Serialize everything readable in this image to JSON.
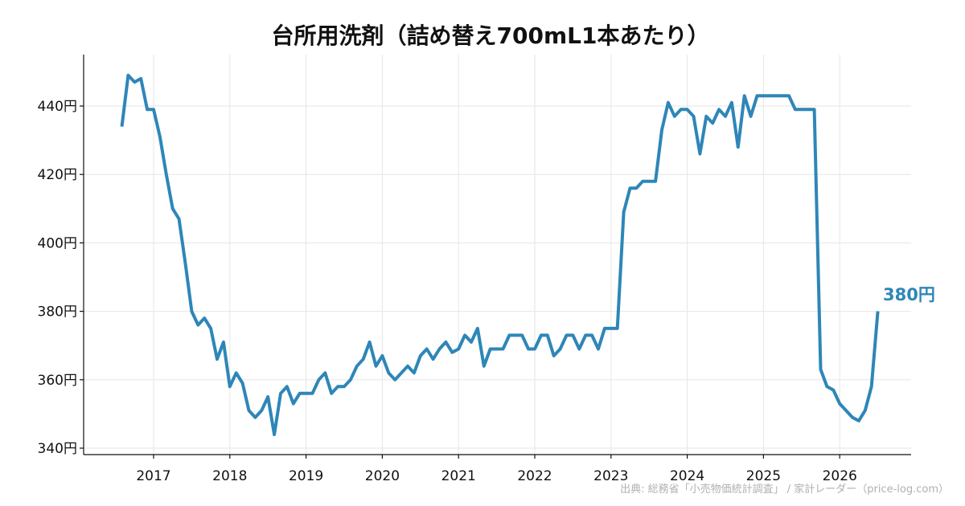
{
  "chart_data": {
    "type": "line",
    "title": "台所用洗剤（詰め替え700mL1本あたり）",
    "y_unit": "円",
    "ylim": [
      338,
      455
    ],
    "y_ticks": [
      340,
      360,
      380,
      400,
      420,
      440
    ],
    "y_tick_labels": [
      "340円",
      "360円",
      "380円",
      "400円",
      "420円",
      "440円"
    ],
    "x_ticks": [
      2017,
      2018,
      2019,
      2020,
      2021,
      2022,
      2023,
      2024,
      2025,
      2026
    ],
    "x_tick_labels": [
      "2017",
      "2018",
      "2019",
      "2020",
      "2021",
      "2022",
      "2023",
      "2024",
      "2025",
      "2026"
    ],
    "grid": true,
    "end_label": "380円",
    "source": "出典: 総務省「小売物価統計調査」 / 家計レーダー（price-log.com）",
    "colors": {
      "line": "#2e86b8",
      "end_label": "#2e86b8"
    },
    "series": [
      {
        "x": [
          "2016-08",
          "2016-09",
          "2016-10",
          "2016-11",
          "2016-12",
          "2017-01",
          "2017-02",
          "2017-03",
          "2017-04",
          "2017-05",
          "2017-06",
          "2017-07",
          "2017-08",
          "2017-09",
          "2017-10",
          "2017-11",
          "2017-12",
          "2018-01",
          "2018-02",
          "2018-03",
          "2018-04",
          "2018-05",
          "2018-06",
          "2018-07",
          "2018-08",
          "2018-09",
          "2018-10",
          "2018-11",
          "2018-12",
          "2019-01",
          "2019-02",
          "2019-03",
          "2019-04",
          "2019-05",
          "2019-06",
          "2019-07",
          "2019-08",
          "2019-09",
          "2019-10",
          "2019-11",
          "2019-12",
          "2020-01",
          "2020-02",
          "2020-03",
          "2020-04",
          "2020-05",
          "2020-06",
          "2020-07",
          "2020-08",
          "2020-09",
          "2020-10",
          "2020-11",
          "2020-12",
          "2021-01",
          "2021-02",
          "2021-03",
          "2021-04",
          "2021-05",
          "2021-06",
          "2021-07",
          "2021-08",
          "2021-09",
          "2021-10",
          "2021-11",
          "2021-12",
          "2022-01",
          "2022-02",
          "2022-03",
          "2022-04",
          "2022-05",
          "2022-06",
          "2022-07",
          "2022-08",
          "2022-09",
          "2022-10",
          "2022-11",
          "2022-12",
          "2023-01",
          "2023-02",
          "2023-03",
          "2023-04",
          "2023-05",
          "2023-06",
          "2023-07",
          "2023-08",
          "2023-09",
          "2023-10",
          "2023-11",
          "2023-12",
          "2024-01",
          "2024-02",
          "2024-03",
          "2024-04",
          "2024-05",
          "2024-06",
          "2024-07",
          "2024-08",
          "2024-09",
          "2024-10",
          "2024-11",
          "2024-12",
          "2025-01",
          "2025-02",
          "2025-03",
          "2025-04",
          "2025-05",
          "2025-06",
          "2025-07",
          "2025-08",
          "2025-09",
          "2025-10",
          "2025-11",
          "2025-12",
          "2026-01",
          "2026-02",
          "2026-03",
          "2026-04",
          "2026-05",
          "2026-06",
          "2026-07"
        ],
        "values": [
          434,
          449,
          447,
          448,
          439,
          439,
          431,
          420,
          410,
          407,
          394,
          380,
          376,
          378,
          375,
          366,
          371,
          358,
          362,
          359,
          351,
          349,
          351,
          355,
          344,
          356,
          358,
          353,
          356,
          356,
          356,
          360,
          362,
          356,
          358,
          358,
          360,
          364,
          366,
          371,
          364,
          367,
          362,
          360,
          362,
          364,
          362,
          367,
          369,
          366,
          369,
          371,
          368,
          369,
          373,
          371,
          375,
          364,
          369,
          369,
          369,
          373,
          373,
          373,
          369,
          369,
          373,
          373,
          367,
          369,
          373,
          373,
          369,
          373,
          373,
          369,
          375,
          375,
          375,
          409,
          416,
          416,
          418,
          418,
          418,
          433,
          441,
          437,
          439,
          439,
          437,
          426,
          437,
          435,
          439,
          437,
          441,
          428,
          443,
          437,
          443,
          443,
          443,
          443,
          443,
          443,
          439,
          439,
          439,
          439,
          363,
          358,
          357,
          353,
          351,
          349,
          348,
          351,
          358,
          380
        ]
      }
    ]
  }
}
